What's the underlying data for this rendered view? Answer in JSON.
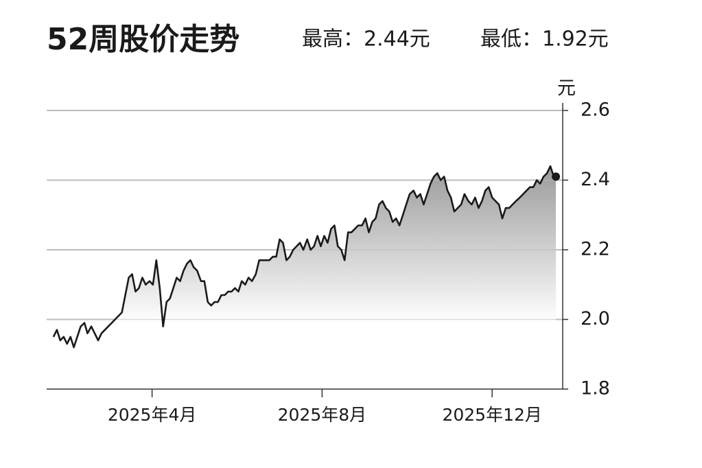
{
  "chart_data": {
    "type": "line",
    "title": "52周股价走势",
    "annotations": [
      "最高：2.44元",
      "最低：1.92元"
    ],
    "y_unit": "元",
    "line_color": "#1a1a1a",
    "area_fill": true,
    "grid": true,
    "end_marker": true,
    "xlim": [
      1.52,
      13.66
    ],
    "xticks": [
      {
        "value": 4,
        "label": "2025年4月"
      },
      {
        "value": 8,
        "label": "2025年8月"
      },
      {
        "value": 12,
        "label": "2025年12月"
      }
    ],
    "ylim": [
      1.8,
      2.6
    ],
    "yticks": [
      1.8,
      {
        "value": 2,
        "label": "2.0"
      },
      2.2,
      2.4,
      2.6
    ],
    "x": [
      1.68,
      1.76,
      1.84,
      1.92,
      2.0,
      2.08,
      2.16,
      2.24,
      2.32,
      2.41,
      2.48,
      2.57,
      2.65,
      2.73,
      2.81,
      2.89,
      2.97,
      3.05,
      3.13,
      3.21,
      3.29,
      3.37,
      3.45,
      3.53,
      3.61,
      3.69,
      3.77,
      3.85,
      3.94,
      4.02,
      4.1,
      4.18,
      4.26,
      4.34,
      4.42,
      4.5,
      4.58,
      4.66,
      4.74,
      4.82,
      4.9,
      4.98,
      5.06,
      5.15,
      5.23,
      5.31,
      5.39,
      5.47,
      5.55,
      5.63,
      5.71,
      5.79,
      5.87,
      5.95,
      6.03,
      6.11,
      6.19,
      6.27,
      6.35,
      6.44,
      6.52,
      6.6,
      6.68,
      6.76,
      6.84,
      6.92,
      7.0,
      7.08,
      7.16,
      7.24,
      7.32,
      7.4,
      7.48,
      7.56,
      7.65,
      7.73,
      7.81,
      7.89,
      7.97,
      8.05,
      8.13,
      8.21,
      8.29,
      8.37,
      8.45,
      8.53,
      8.61,
      8.69,
      8.77,
      8.85,
      8.94,
      9.02,
      9.1,
      9.18,
      9.26,
      9.34,
      9.42,
      9.5,
      9.58,
      9.66,
      9.74,
      9.82,
      9.9,
      9.98,
      10.06,
      10.15,
      10.23,
      10.31,
      10.39,
      10.47,
      10.55,
      10.63,
      10.71,
      10.79,
      10.87,
      10.95,
      11.03,
      11.11,
      11.19,
      11.27,
      11.35,
      11.44,
      11.52,
      11.6,
      11.68,
      11.76,
      11.84,
      11.92,
      12.0,
      12.08,
      12.16,
      12.24,
      12.32,
      12.4,
      12.48,
      12.56,
      12.65,
      12.73,
      12.81,
      12.89,
      12.97,
      13.05,
      13.13,
      13.21,
      13.29,
      13.37,
      13.45,
      13.5
    ],
    "values": [
      1.95,
      1.97,
      1.94,
      1.95,
      1.93,
      1.95,
      1.92,
      1.95,
      1.98,
      1.99,
      1.96,
      1.98,
      1.96,
      1.94,
      1.96,
      1.97,
      1.98,
      1.99,
      2.0,
      2.01,
      2.02,
      2.07,
      2.12,
      2.13,
      2.08,
      2.09,
      2.12,
      2.1,
      2.11,
      2.1,
      2.17,
      2.09,
      1.98,
      2.05,
      2.06,
      2.09,
      2.12,
      2.11,
      2.14,
      2.16,
      2.17,
      2.15,
      2.14,
      2.11,
      2.11,
      2.05,
      2.04,
      2.05,
      2.05,
      2.07,
      2.07,
      2.08,
      2.08,
      2.09,
      2.08,
      2.11,
      2.1,
      2.12,
      2.11,
      2.13,
      2.17,
      2.17,
      2.17,
      2.17,
      2.18,
      2.18,
      2.23,
      2.22,
      2.17,
      2.18,
      2.2,
      2.21,
      2.22,
      2.2,
      2.23,
      2.2,
      2.21,
      2.24,
      2.21,
      2.24,
      2.22,
      2.26,
      2.27,
      2.21,
      2.2,
      2.17,
      2.25,
      2.25,
      2.26,
      2.27,
      2.27,
      2.29,
      2.25,
      2.28,
      2.29,
      2.33,
      2.34,
      2.32,
      2.31,
      2.28,
      2.29,
      2.27,
      2.3,
      2.33,
      2.36,
      2.37,
      2.35,
      2.36,
      2.33,
      2.36,
      2.39,
      2.41,
      2.42,
      2.4,
      2.41,
      2.37,
      2.35,
      2.31,
      2.32,
      2.33,
      2.36,
      2.34,
      2.33,
      2.35,
      2.32,
      2.34,
      2.37,
      2.38,
      2.35,
      2.34,
      2.33,
      2.29,
      2.32,
      2.32,
      2.33,
      2.34,
      2.35,
      2.36,
      2.37,
      2.38,
      2.38,
      2.4,
      2.39,
      2.41,
      2.42,
      2.44,
      2.41,
      2.41
    ]
  }
}
